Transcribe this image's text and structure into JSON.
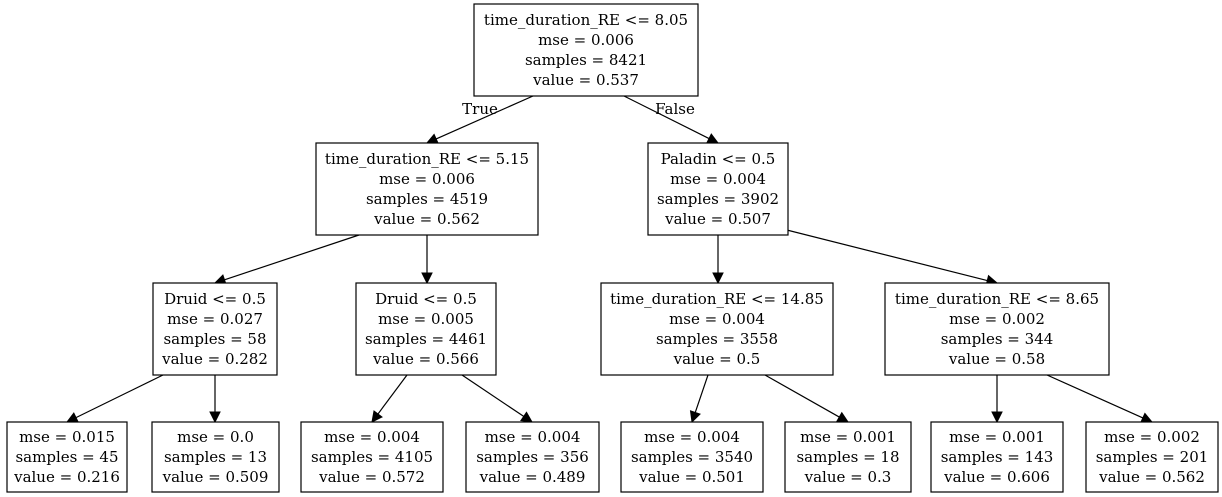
{
  "tree": {
    "edge_labels": {
      "true": "True",
      "false": "False"
    },
    "nodes": [
      {
        "id": "n0",
        "lines": [
          "time_duration_RE <= 8.05",
          "mse = 0.006",
          "samples = 8421",
          "value = 0.537"
        ]
      },
      {
        "id": "n1",
        "lines": [
          "time_duration_RE <= 5.15",
          "mse = 0.006",
          "samples = 4519",
          "value = 0.562"
        ]
      },
      {
        "id": "n2",
        "lines": [
          "Paladin <= 0.5",
          "mse = 0.004",
          "samples = 3902",
          "value = 0.507"
        ]
      },
      {
        "id": "n3",
        "lines": [
          "Druid <= 0.5",
          "mse = 0.027",
          "samples = 58",
          "value = 0.282"
        ]
      },
      {
        "id": "n4",
        "lines": [
          "Druid <= 0.5",
          "mse = 0.005",
          "samples = 4461",
          "value = 0.566"
        ]
      },
      {
        "id": "n5",
        "lines": [
          "time_duration_RE <= 14.85",
          "mse = 0.004",
          "samples = 3558",
          "value = 0.5"
        ]
      },
      {
        "id": "n6",
        "lines": [
          "time_duration_RE <= 8.65",
          "mse = 0.002",
          "samples = 344",
          "value = 0.58"
        ]
      },
      {
        "id": "n7",
        "lines": [
          "mse = 0.015",
          "samples = 45",
          "value = 0.216"
        ]
      },
      {
        "id": "n8",
        "lines": [
          "mse = 0.0",
          "samples = 13",
          "value = 0.509"
        ]
      },
      {
        "id": "n9",
        "lines": [
          "mse = 0.004",
          "samples = 4105",
          "value = 0.572"
        ]
      },
      {
        "id": "n10",
        "lines": [
          "mse = 0.004",
          "samples = 356",
          "value = 0.489"
        ]
      },
      {
        "id": "n11",
        "lines": [
          "mse = 0.004",
          "samples = 3540",
          "value = 0.501"
        ]
      },
      {
        "id": "n12",
        "lines": [
          "mse = 0.001",
          "samples = 18",
          "value = 0.3"
        ]
      },
      {
        "id": "n13",
        "lines": [
          "mse = 0.001",
          "samples = 143",
          "value = 0.606"
        ]
      },
      {
        "id": "n14",
        "lines": [
          "mse = 0.002",
          "samples = 201",
          "value = 0.562"
        ]
      }
    ],
    "edges": [
      {
        "from": "n0",
        "to": "n1",
        "label": "true"
      },
      {
        "from": "n0",
        "to": "n2",
        "label": "false"
      },
      {
        "from": "n1",
        "to": "n3"
      },
      {
        "from": "n1",
        "to": "n4"
      },
      {
        "from": "n2",
        "to": "n5"
      },
      {
        "from": "n2",
        "to": "n6"
      },
      {
        "from": "n3",
        "to": "n7"
      },
      {
        "from": "n3",
        "to": "n8"
      },
      {
        "from": "n4",
        "to": "n9"
      },
      {
        "from": "n4",
        "to": "n10"
      },
      {
        "from": "n5",
        "to": "n11"
      },
      {
        "from": "n5",
        "to": "n12"
      },
      {
        "from": "n6",
        "to": "n13"
      },
      {
        "from": "n6",
        "to": "n14"
      }
    ]
  }
}
